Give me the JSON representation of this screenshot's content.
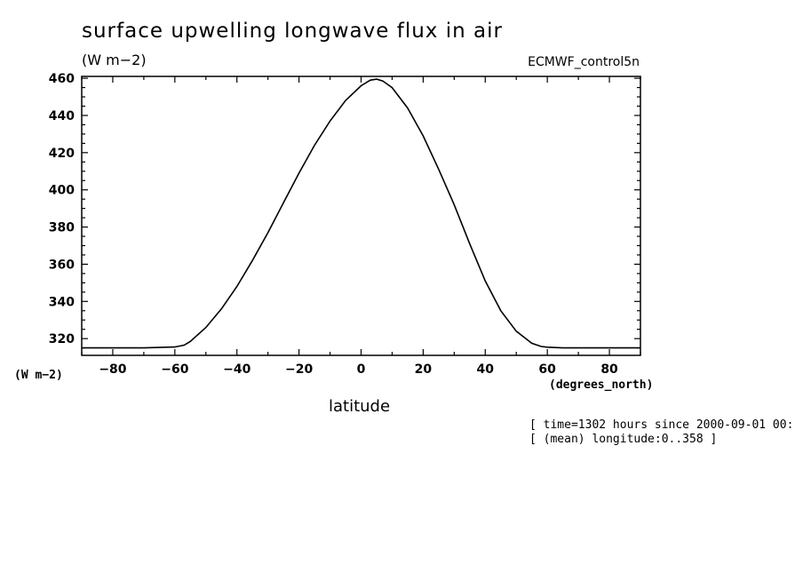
{
  "header": {
    "title": "surface upwelling longwave flux in air",
    "units": "(W m−2)",
    "dataset": "ECMWF_control5n"
  },
  "axes": {
    "y_units": "(W m−2)",
    "x_units": "(degrees_north)",
    "x_label": "latitude"
  },
  "notes": {
    "time": "[ time=1302 hours since 2000-09-01 00:",
    "longitude": "[ (mean) longitude:0..358 ]"
  },
  "chart_data": {
    "type": "line",
    "xlim": [
      -90,
      90
    ],
    "ylim": [
      311,
      461
    ],
    "x_ticks": [
      -80,
      -60,
      -40,
      -20,
      0,
      20,
      40,
      60,
      80
    ],
    "y_ticks": [
      320,
      340,
      360,
      380,
      400,
      420,
      440,
      460
    ],
    "grid": false,
    "series": [
      {
        "x": [
          -90,
          -80,
          -70,
          -60,
          -57,
          -55,
          -50,
          -45,
          -40,
          -35,
          -30,
          -25,
          -20,
          -15,
          -10,
          -5,
          0,
          3,
          5,
          7,
          10,
          15,
          20,
          25,
          30,
          35,
          40,
          45,
          50,
          55,
          58,
          60,
          65,
          70,
          80,
          90
        ],
        "y": [
          315,
          315,
          315,
          315.5,
          316.5,
          318.5,
          326,
          336,
          348,
          362,
          377,
          393,
          409,
          424,
          437,
          448,
          456,
          459,
          459.5,
          458.5,
          455,
          444,
          429,
          411,
          392,
          371,
          351,
          335,
          324,
          317.5,
          315.8,
          315.4,
          315,
          315,
          315,
          315
        ]
      }
    ]
  }
}
